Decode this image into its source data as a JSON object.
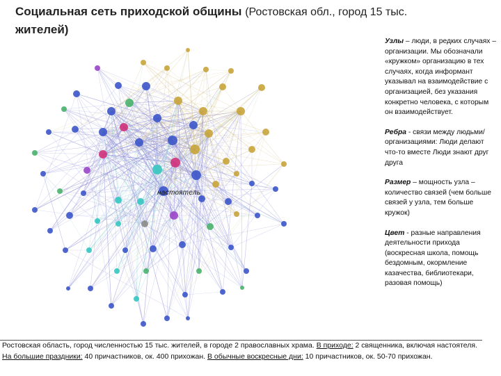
{
  "title": {
    "main": "Социальная сеть приходской общины",
    "sub": "(Ростовская обл., город 15 тыс.",
    "main2": "жителей)"
  },
  "network": {
    "label": "настоятель",
    "colors": {
      "edges": "#8f8fd9",
      "edges_gold": "#d8c690",
      "edges_teal": "#8fd6d2",
      "blue": "#3b55c9",
      "gold": "#c8a43a",
      "magenta": "#d0317a",
      "teal": "#35c7c1",
      "green": "#49b36b",
      "purple": "#9a45c8",
      "gray": "#8a8a8a"
    }
  },
  "side": {
    "nodes": {
      "term": "Узлы",
      "text": " – люди, в редких случаях – организации. Мы обозначали «кружком» организацию в тех случаях, когда информант указывал на взаимодействие с организацией, без указания конкретно человека, с которым он взаимодействует."
    },
    "edges": {
      "term": "Ребра",
      "text": " - связи между людьми/организациями: Люди делают что-то вместе Люди знают друг друга"
    },
    "size": {
      "term": "Размер",
      "text": " – мощность узла – количество связей (чем больше связей у узла, тем больше кружок)"
    },
    "color": {
      "term": "Цвет",
      "text": " - разные направления деятельности прихода (воскресная школа, помощь бездомным, окормление казачества, библиотекари, разовая помощь)"
    }
  },
  "footer": {
    "t1": "Ростовская область, город численностью 15 тыс. жителей, в городе 2 православных храма. ",
    "u1": "В приходе:",
    "t2": " 2 священника, включая настоятеля. ",
    "u2": "На большие праздники:",
    "t3": " 40 причастников, ок. 400 прихожан. ",
    "u3": "В обычные воскресные дни:",
    "t4": " 10 причастников, ок. 50-70 прихожан."
  }
}
